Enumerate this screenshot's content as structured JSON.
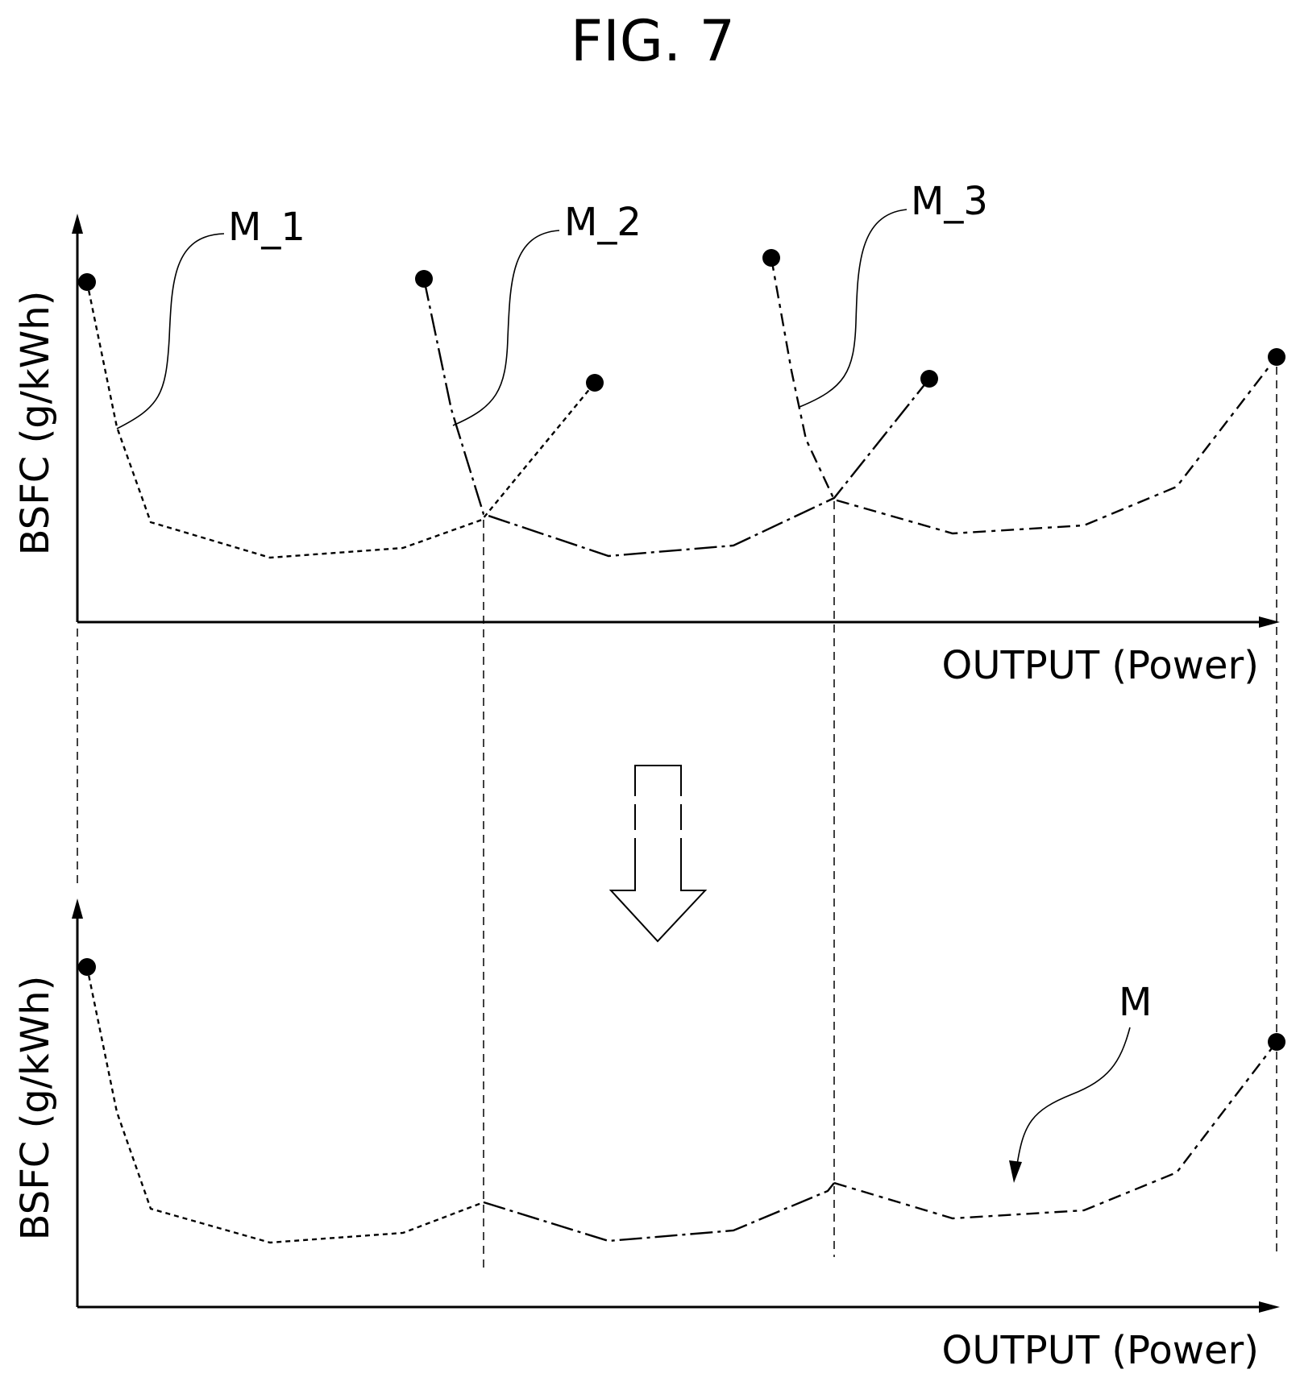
{
  "figure": {
    "title": "FIG. 7"
  },
  "top_graph": {
    "y_axis_label": "BSFC (g/kWh)",
    "x_axis_label": "OUTPUT (Power)",
    "curve_labels": [
      "M_1",
      "M_2",
      "M_3"
    ]
  },
  "bottom_graph": {
    "y_axis_label": "BSFC (g/kWh)",
    "x_axis_label": "OUTPUT (Power)",
    "curve_label": "M"
  }
}
